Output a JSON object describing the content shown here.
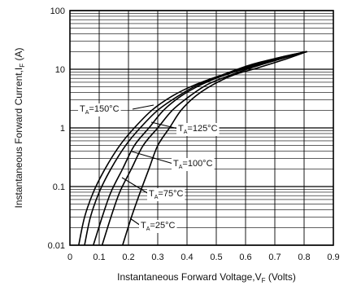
{
  "chart_data": {
    "type": "line",
    "xlabel": "Instantaneous Forward Voltage,V",
    "xlabel_sub": "F",
    "xlabel_unit": " (Volts)",
    "ylabel": "Instantaneous Forward Current,I",
    "ylabel_sub": "F",
    "ylabel_unit": " (A)",
    "xlim": [
      0,
      0.9
    ],
    "ylim": [
      0.01,
      100
    ],
    "y_scale": "log",
    "x_ticks": [
      0,
      0.1,
      0.2,
      0.3,
      0.4,
      0.5,
      0.6,
      0.7,
      0.8,
      0.9
    ],
    "x_tick_labels": [
      "0",
      "0.1",
      "0.2",
      "0.3",
      "0.4",
      "0.5",
      "0.6",
      "0.7",
      "0.8",
      "0.9"
    ],
    "y_ticks": [
      0.01,
      0.1,
      1,
      10,
      100
    ],
    "y_tick_labels": [
      "0.01",
      "0.1",
      "1",
      "10",
      "100"
    ],
    "grid": true,
    "series": [
      {
        "label_main": "T",
        "label_sub": "A",
        "label_rest": "=150°C",
        "x": [
          0.03,
          0.05,
          0.08,
          0.12,
          0.17,
          0.22,
          0.28,
          0.35,
          0.43,
          0.52,
          0.62,
          0.72,
          0.81
        ],
        "y": [
          0.01,
          0.03,
          0.08,
          0.2,
          0.5,
          1.0,
          2.0,
          3.5,
          5.5,
          8.0,
          12.0,
          16.0,
          20.0
        ]
      },
      {
        "label_main": "T",
        "label_sub": "A",
        "label_rest": "=125°C",
        "x": [
          0.05,
          0.07,
          0.1,
          0.14,
          0.19,
          0.24,
          0.3,
          0.37,
          0.44,
          0.53,
          0.62,
          0.72,
          0.81
        ],
        "y": [
          0.01,
          0.03,
          0.08,
          0.2,
          0.5,
          1.0,
          2.0,
          3.5,
          5.5,
          8.0,
          11.5,
          16.0,
          20.0
        ]
      },
      {
        "label_main": "T",
        "label_sub": "A",
        "label_rest": "=100°C",
        "x": [
          0.08,
          0.11,
          0.14,
          0.18,
          0.22,
          0.27,
          0.32,
          0.38,
          0.45,
          0.53,
          0.62,
          0.72,
          0.81
        ],
        "y": [
          0.01,
          0.03,
          0.08,
          0.2,
          0.5,
          1.0,
          2.0,
          3.5,
          5.5,
          8.0,
          11.0,
          15.5,
          20.0
        ]
      },
      {
        "label_main": "T",
        "label_sub": "A",
        "label_rest": "=75°C",
        "x": [
          0.11,
          0.14,
          0.17,
          0.21,
          0.25,
          0.3,
          0.35,
          0.41,
          0.47,
          0.55,
          0.63,
          0.72,
          0.81
        ],
        "y": [
          0.01,
          0.03,
          0.08,
          0.2,
          0.5,
          1.0,
          2.0,
          3.5,
          5.5,
          8.0,
          11.0,
          15.0,
          20.0
        ]
      },
      {
        "label_main": "T",
        "label_sub": "A",
        "label_rest": "=25°C",
        "x": [
          0.18,
          0.21,
          0.24,
          0.27,
          0.3,
          0.34,
          0.38,
          0.43,
          0.49,
          0.56,
          0.64,
          0.73,
          0.81
        ],
        "y": [
          0.01,
          0.03,
          0.08,
          0.2,
          0.5,
          1.0,
          2.0,
          3.5,
          5.5,
          8.0,
          10.5,
          14.5,
          20.0
        ]
      }
    ]
  }
}
